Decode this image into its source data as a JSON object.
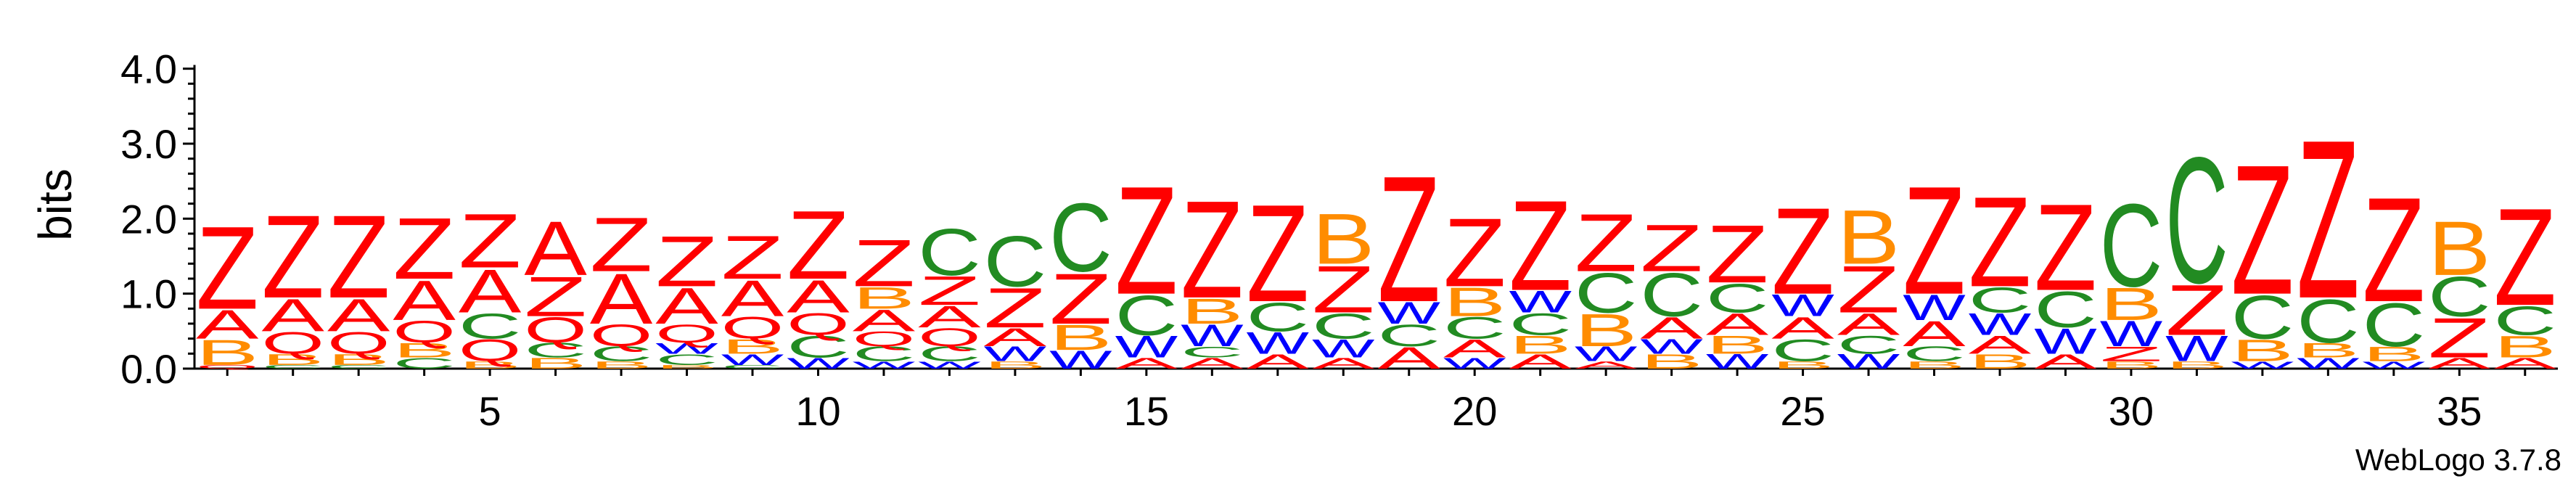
{
  "chart_data": {
    "type": "sequence-logo",
    "ylabel": "bits",
    "ylim": [
      0,
      4.2
    ],
    "y_ticks": [
      "0.0",
      "1.0",
      "2.0",
      "3.0",
      "4.0"
    ],
    "x_ticks": [
      5,
      10,
      15,
      20,
      25,
      30,
      35
    ],
    "positions": 36,
    "colors": {
      "Z": "#ff0000",
      "A": "#ff0000",
      "C": "#228b22",
      "B": "#ff8c00",
      "Q": "#ff0000",
      "W": "#0000ff"
    },
    "stacks": [
      [
        [
          "Z",
          1.15
        ],
        [
          "A",
          0.4
        ],
        [
          "B",
          0.35
        ],
        [
          "Q",
          0.05
        ]
      ],
      [
        [
          "Z",
          1.15
        ],
        [
          "A",
          0.45
        ],
        [
          "Q",
          0.3
        ],
        [
          "B",
          0.15
        ],
        [
          "C",
          0.05
        ]
      ],
      [
        [
          "Z",
          1.15
        ],
        [
          "A",
          0.45
        ],
        [
          "Q",
          0.3
        ],
        [
          "B",
          0.15
        ],
        [
          "C",
          0.05
        ]
      ],
      [
        [
          "Z",
          0.85
        ],
        [
          "A",
          0.55
        ],
        [
          "Q",
          0.3
        ],
        [
          "B",
          0.2
        ],
        [
          "C",
          0.15
        ]
      ],
      [
        [
          "Z",
          0.75
        ],
        [
          "A",
          0.6
        ],
        [
          "C",
          0.35
        ],
        [
          "Q",
          0.3
        ],
        [
          "B",
          0.1
        ]
      ],
      [
        [
          "A",
          0.75
        ],
        [
          "Z",
          0.55
        ],
        [
          "Q",
          0.35
        ],
        [
          "C",
          0.2
        ],
        [
          "B",
          0.15
        ]
      ],
      [
        [
          "Z",
          0.75
        ],
        [
          "A",
          0.7
        ],
        [
          "Q",
          0.3
        ],
        [
          "C",
          0.2
        ],
        [
          "B",
          0.1
        ]
      ],
      [
        [
          "Z",
          0.7
        ],
        [
          "A",
          0.5
        ],
        [
          "Q",
          0.25
        ],
        [
          "C",
          0.15
        ],
        [
          "W",
          0.15
        ],
        [
          "B",
          0.05
        ]
      ],
      [
        [
          "Z",
          0.6
        ],
        [
          "A",
          0.5
        ],
        [
          "Q",
          0.3
        ],
        [
          "B",
          0.2
        ],
        [
          "W",
          0.15
        ],
        [
          "C",
          0.05
        ]
      ],
      [
        [
          "Z",
          0.95
        ],
        [
          "A",
          0.45
        ],
        [
          "C",
          0.3
        ],
        [
          "Q",
          0.3
        ],
        [
          "W",
          0.15
        ]
      ],
      [
        [
          "Z",
          0.65
        ],
        [
          "A",
          0.3
        ],
        [
          "B",
          0.3
        ],
        [
          "C",
          0.2
        ],
        [
          "Q",
          0.2
        ],
        [
          "W",
          0.1
        ]
      ],
      [
        [
          "C",
          0.65
        ],
        [
          "Z",
          0.4
        ],
        [
          "A",
          0.3
        ],
        [
          "Q",
          0.25
        ],
        [
          "C",
          0.2
        ],
        [
          "W",
          0.1
        ]
      ],
      [
        [
          "C",
          0.7
        ],
        [
          "Z",
          0.55
        ],
        [
          "A",
          0.25
        ],
        [
          "W",
          0.2
        ],
        [
          "B",
          0.1
        ]
      ],
      [
        [
          "C",
          0.95
        ],
        [
          "Z",
          0.7
        ],
        [
          "B",
          0.35
        ],
        [
          "W",
          0.25
        ]
      ],
      [
        [
          "Z",
          1.5
        ],
        [
          "C",
          0.55
        ],
        [
          "W",
          0.3
        ],
        [
          "A",
          0.15
        ]
      ],
      [
        [
          "Z",
          1.35
        ],
        [
          "B",
          0.35
        ],
        [
          "W",
          0.3
        ],
        [
          "A",
          0.15
        ],
        [
          "C",
          0.15
        ]
      ],
      [
        [
          "Z",
          1.35
        ],
        [
          "C",
          0.4
        ],
        [
          "W",
          0.3
        ],
        [
          "A",
          0.2
        ]
      ],
      [
        [
          "B",
          0.7
        ],
        [
          "Z",
          0.65
        ],
        [
          "C",
          0.35
        ],
        [
          "W",
          0.25
        ],
        [
          "A",
          0.15
        ]
      ],
      [
        [
          "Z",
          1.75
        ],
        [
          "A",
          0.3
        ],
        [
          "C",
          0.3
        ],
        [
          "W",
          0.3
        ]
      ],
      [
        [
          "Z",
          0.95
        ],
        [
          "B",
          0.4
        ],
        [
          "C",
          0.3
        ],
        [
          "A",
          0.25
        ],
        [
          "W",
          0.15
        ]
      ],
      [
        [
          "Z",
          1.25
        ],
        [
          "C",
          0.3
        ],
        [
          "W",
          0.3
        ],
        [
          "A",
          0.2
        ],
        [
          "B",
          0.25
        ]
      ],
      [
        [
          "Z",
          0.8
        ],
        [
          "C",
          0.55
        ],
        [
          "B",
          0.45
        ],
        [
          "W",
          0.2
        ],
        [
          "A",
          0.1
        ]
      ],
      [
        [
          "Z",
          0.65
        ],
        [
          "C",
          0.6
        ],
        [
          "A",
          0.3
        ],
        [
          "B",
          0.2
        ],
        [
          "W",
          0.2
        ]
      ],
      [
        [
          "Z",
          0.8
        ],
        [
          "C",
          0.4
        ],
        [
          "A",
          0.3
        ],
        [
          "B",
          0.25
        ],
        [
          "W",
          0.2
        ]
      ],
      [
        [
          "Z",
          1.2
        ],
        [
          "C",
          0.3
        ],
        [
          "A",
          0.3
        ],
        [
          "W",
          0.3
        ],
        [
          "B",
          0.1
        ]
      ],
      [
        [
          "B",
          0.75
        ],
        [
          "Z",
          0.65
        ],
        [
          "A",
          0.3
        ],
        [
          "C",
          0.25
        ],
        [
          "W",
          0.2
        ]
      ],
      [
        [
          "Z",
          1.5
        ],
        [
          "A",
          0.35
        ],
        [
          "W",
          0.35
        ],
        [
          "C",
          0.2
        ],
        [
          "B",
          0.1
        ]
      ],
      [
        [
          "Z",
          1.25
        ],
        [
          "C",
          0.35
        ],
        [
          "W",
          0.3
        ],
        [
          "A",
          0.25
        ],
        [
          "B",
          0.2
        ]
      ],
      [
        [
          "Z",
          1.2
        ],
        [
          "C",
          0.5
        ],
        [
          "W",
          0.35
        ],
        [
          "A",
          0.2
        ]
      ],
      [
        [
          "C",
          1.15
        ],
        [
          "B",
          0.45
        ],
        [
          "W",
          0.35
        ],
        [
          "Z",
          0.2
        ],
        [
          "B",
          0.1
        ]
      ],
      [
        [
          "C",
          1.75
        ],
        [
          "Z",
          0.7
        ],
        [
          "W",
          0.35
        ],
        [
          "B",
          0.1
        ]
      ],
      [
        [
          "Z",
          1.8
        ],
        [
          "C",
          0.6
        ],
        [
          "B",
          0.3
        ],
        [
          "W",
          0.1
        ]
      ],
      [
        [
          "Z",
          2.2
        ],
        [
          "C",
          0.6
        ],
        [
          "B",
          0.2
        ],
        [
          "W",
          0.15
        ]
      ],
      [
        [
          "Z",
          1.45
        ],
        [
          "C",
          0.6
        ],
        [
          "B",
          0.2
        ],
        [
          "W",
          0.1
        ]
      ],
      [
        [
          "B",
          0.75
        ],
        [
          "Z",
          0.55
        ],
        [
          "C",
          0.55
        ],
        [
          "A",
          0.15
        ]
      ],
      [
        [
          "Z",
          1.35
        ],
        [
          "C",
          0.4
        ],
        [
          "B",
          0.3
        ],
        [
          "A",
          0.15
        ]
      ]
    ]
  },
  "footer": {
    "credit": "WebLogo 3.7.8"
  }
}
